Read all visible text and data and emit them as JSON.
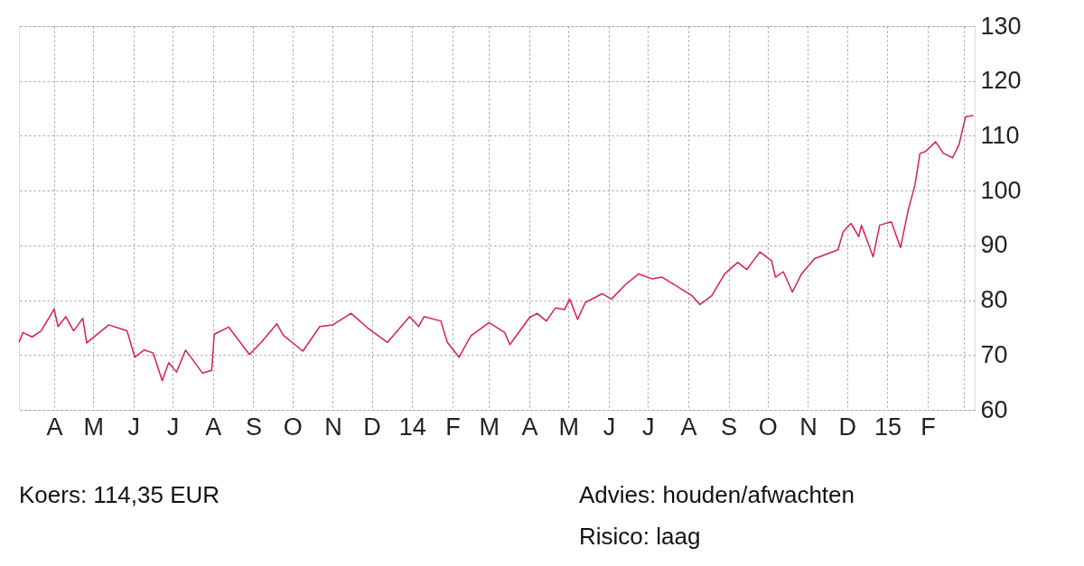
{
  "chart_data": {
    "type": "line",
    "x": [
      "2013-03-05",
      "2013-03-08",
      "2013-03-15",
      "2013-03-22",
      "2013-04-01",
      "2013-04-04",
      "2013-04-10",
      "2013-04-16",
      "2013-04-23",
      "2013-04-26",
      "2013-05-13",
      "2013-05-27",
      "2013-06-02",
      "2013-06-09",
      "2013-06-16",
      "2013-06-23",
      "2013-06-28",
      "2013-07-04",
      "2013-07-11",
      "2013-07-24",
      "2013-07-31",
      "2013-08-02",
      "2013-08-13",
      "2013-08-29",
      "2013-09-07",
      "2013-09-19",
      "2013-09-24",
      "2013-10-09",
      "2013-10-22",
      "2013-11-01",
      "2013-11-15",
      "2013-11-28",
      "2013-12-13",
      "2013-12-30",
      "2014-01-06",
      "2014-01-10",
      "2014-01-23",
      "2014-01-28",
      "2014-02-06",
      "2014-02-15",
      "2014-03-01",
      "2014-03-13",
      "2014-03-17",
      "2014-04-01",
      "2014-04-07",
      "2014-04-14",
      "2014-04-21",
      "2014-04-28",
      "2014-05-02",
      "2014-05-08",
      "2014-05-14",
      "2014-05-27",
      "2014-06-03",
      "2014-06-14",
      "2014-06-24",
      "2014-07-04",
      "2014-07-12",
      "2014-07-23",
      "2014-08-04",
      "2014-08-10",
      "2014-08-19",
      "2014-08-29",
      "2014-09-08",
      "2014-09-15",
      "2014-09-25",
      "2014-10-04",
      "2014-10-07",
      "2014-10-13",
      "2014-10-20",
      "2014-10-27",
      "2014-11-06",
      "2014-11-24",
      "2014-11-28",
      "2014-12-04",
      "2014-12-10",
      "2014-12-12",
      "2014-12-21",
      "2014-12-26",
      "2015-01-04",
      "2015-01-11",
      "2015-01-17",
      "2015-01-22",
      "2015-01-26",
      "2015-01-30",
      "2015-02-07",
      "2015-02-13",
      "2015-02-20",
      "2015-02-25",
      "2015-03-02",
      "2015-03-08"
    ],
    "series": [
      {
        "color": "#d81e5b",
        "values": [
          72.3,
          74.1,
          73.3,
          74.4,
          78.4,
          75.2,
          77.0,
          74.4,
          76.7,
          72.2,
          75.5,
          74.4,
          69.6,
          70.9,
          70.4,
          65.3,
          68.6,
          66.9,
          70.9,
          66.7,
          67.2,
          73.8,
          75.1,
          70.1,
          72.3,
          75.7,
          73.6,
          70.7,
          75.2,
          75.5,
          77.6,
          74.9,
          72.3,
          77.0,
          75.2,
          77.0,
          76.2,
          72.3,
          69.6,
          73.5,
          75.9,
          74.1,
          71.9,
          76.8,
          77.6,
          76.2,
          78.6,
          78.3,
          80.2,
          76.5,
          79.6,
          81.2,
          80.2,
          82.9,
          84.8,
          83.9,
          84.2,
          82.6,
          80.8,
          79.2,
          80.8,
          84.8,
          86.9,
          85.6,
          88.8,
          87.2,
          84.2,
          85.2,
          81.5,
          84.8,
          87.6,
          89.2,
          92.5,
          94.0,
          91.6,
          93.7,
          87.9,
          93.7,
          94.3,
          89.6,
          96.5,
          100.9,
          106.8,
          107.1,
          108.9,
          106.8,
          106.0,
          108.4,
          113.5,
          113.7
        ]
      }
    ],
    "xlim": [
      "2013-03-05",
      "2015-03-09"
    ],
    "xticks": [
      {
        "value": "2013-04-01",
        "label": "A"
      },
      {
        "value": "2013-05-01",
        "label": "M"
      },
      {
        "value": "2013-06-01",
        "label": "J"
      },
      {
        "value": "2013-07-01",
        "label": "J"
      },
      {
        "value": "2013-08-01",
        "label": "A"
      },
      {
        "value": "2013-09-01",
        "label": "S"
      },
      {
        "value": "2013-10-01",
        "label": "O"
      },
      {
        "value": "2013-11-01",
        "label": "N"
      },
      {
        "value": "2013-12-01",
        "label": "D"
      },
      {
        "value": "2014-01-01",
        "label": "14"
      },
      {
        "value": "2014-02-01",
        "label": "F"
      },
      {
        "value": "2014-03-01",
        "label": "M"
      },
      {
        "value": "2014-04-01",
        "label": "A"
      },
      {
        "value": "2014-05-01",
        "label": "M"
      },
      {
        "value": "2014-06-01",
        "label": "J"
      },
      {
        "value": "2014-07-01",
        "label": "J"
      },
      {
        "value": "2014-08-01",
        "label": "A"
      },
      {
        "value": "2014-09-01",
        "label": "S"
      },
      {
        "value": "2014-10-01",
        "label": "O"
      },
      {
        "value": "2014-11-01",
        "label": "N"
      },
      {
        "value": "2014-12-01",
        "label": "D"
      },
      {
        "value": "2015-01-01",
        "label": "15"
      },
      {
        "value": "2015-02-01",
        "label": "F"
      },
      {
        "value": "2015-03-01",
        "label": null
      }
    ],
    "ylim": [
      60,
      130
    ],
    "yticks": [
      60,
      70,
      80,
      90,
      100,
      110,
      120,
      130
    ],
    "grid": true,
    "marker": "none",
    "line_style": "solid",
    "annotations": [
      "Koers: 114,35 EUR",
      "Advies: houden/afwachten",
      "Risico: laag"
    ]
  }
}
